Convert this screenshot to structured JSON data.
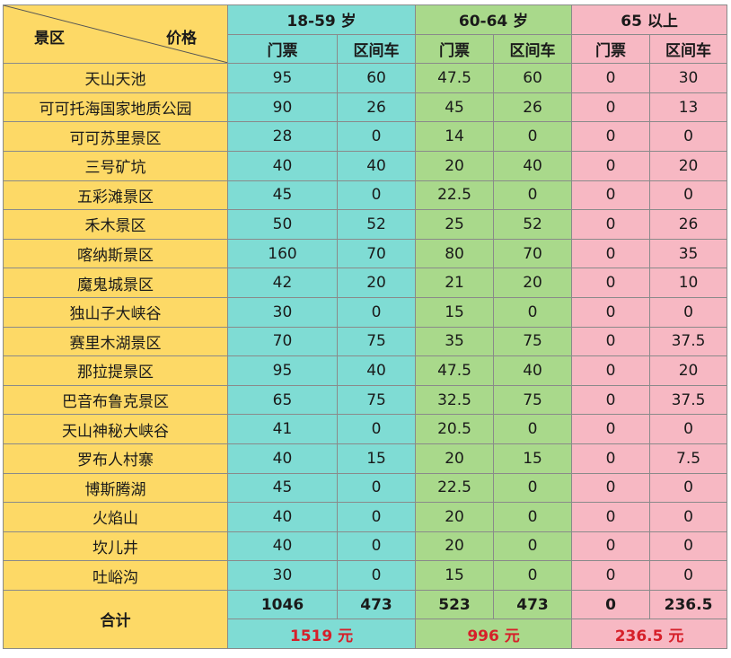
{
  "header": {
    "corner_left": "景区",
    "corner_right": "价格",
    "groups": [
      "18-59 岁",
      "60-64 岁",
      "65 以上"
    ],
    "sub": [
      "门票",
      "区间车",
      "门票",
      "区间车",
      "门票",
      "区间车"
    ]
  },
  "rows": [
    [
      "天山天池",
      "95",
      "60",
      "47.5",
      "60",
      "0",
      "30"
    ],
    [
      "可可托海国家地质公园",
      "90",
      "26",
      "45",
      "26",
      "0",
      "13"
    ],
    [
      "可可苏里景区",
      "28",
      "0",
      "14",
      "0",
      "0",
      "0"
    ],
    [
      "三号矿坑",
      "40",
      "40",
      "20",
      "40",
      "0",
      "20"
    ],
    [
      "五彩滩景区",
      "45",
      "0",
      "22.5",
      "0",
      "0",
      "0"
    ],
    [
      "禾木景区",
      "50",
      "52",
      "25",
      "52",
      "0",
      "26"
    ],
    [
      "喀纳斯景区",
      "160",
      "70",
      "80",
      "70",
      "0",
      "35"
    ],
    [
      "魔鬼城景区",
      "42",
      "20",
      "21",
      "20",
      "0",
      "10"
    ],
    [
      "独山子大峡谷",
      "30",
      "0",
      "15",
      "0",
      "0",
      "0"
    ],
    [
      "赛里木湖景区",
      "70",
      "75",
      "35",
      "75",
      "0",
      "37.5"
    ],
    [
      "那拉提景区",
      "95",
      "40",
      "47.5",
      "40",
      "0",
      "20"
    ],
    [
      "巴音布鲁克景区",
      "65",
      "75",
      "32.5",
      "75",
      "0",
      "37.5"
    ],
    [
      "天山神秘大峡谷",
      "41",
      "0",
      "20.5",
      "0",
      "0",
      "0"
    ],
    [
      "罗布人村寨",
      "40",
      "15",
      "20",
      "15",
      "0",
      "7.5"
    ],
    [
      "博斯腾湖",
      "45",
      "0",
      "22.5",
      "0",
      "0",
      "0"
    ],
    [
      "火焰山",
      "40",
      "0",
      "20",
      "0",
      "0",
      "0"
    ],
    [
      "坎儿井",
      "40",
      "0",
      "20",
      "0",
      "0",
      "0"
    ],
    [
      "吐峪沟",
      "30",
      "0",
      "15",
      "0",
      "0",
      "0"
    ]
  ],
  "total": {
    "label": "合计",
    "values": [
      "1046",
      "473",
      "523",
      "473",
      "0",
      "236.5"
    ],
    "group_sums": [
      "1519 元",
      "996 元",
      "236.5 元"
    ]
  },
  "colors": {
    "scenic_column": "#fdd966",
    "group_18_59": "#7fdcd4",
    "group_60_64": "#a9d98b",
    "group_65_plus": "#f7b8c3",
    "sum_text": "#d6202a"
  }
}
